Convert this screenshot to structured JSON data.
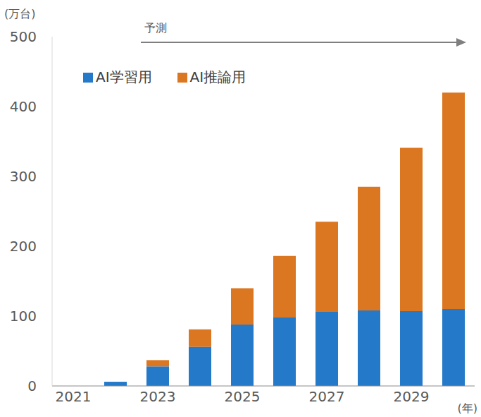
{
  "chart_data": {
    "type": "bar",
    "stacked": true,
    "y_label": "(万台)",
    "x_label": "(年)",
    "annotation": "予測",
    "categories": [
      "2021",
      null,
      "2023",
      null,
      "2025",
      null,
      "2027",
      null,
      "2029",
      null
    ],
    "series": [
      {
        "name": "AI学習用",
        "color": "#2479c9",
        "values": [
          0,
          6,
          28,
          56,
          88,
          98,
          106,
          108,
          107,
          110
        ]
      },
      {
        "name": "AI推論用",
        "color": "#dc7721",
        "values": [
          0,
          0,
          9,
          25,
          52,
          88,
          129,
          177,
          234,
          310
        ]
      }
    ],
    "ylim": [
      0,
      500
    ],
    "yticks": [
      0,
      100,
      200,
      300,
      400,
      500
    ],
    "grid": false,
    "legend": "top-left"
  }
}
